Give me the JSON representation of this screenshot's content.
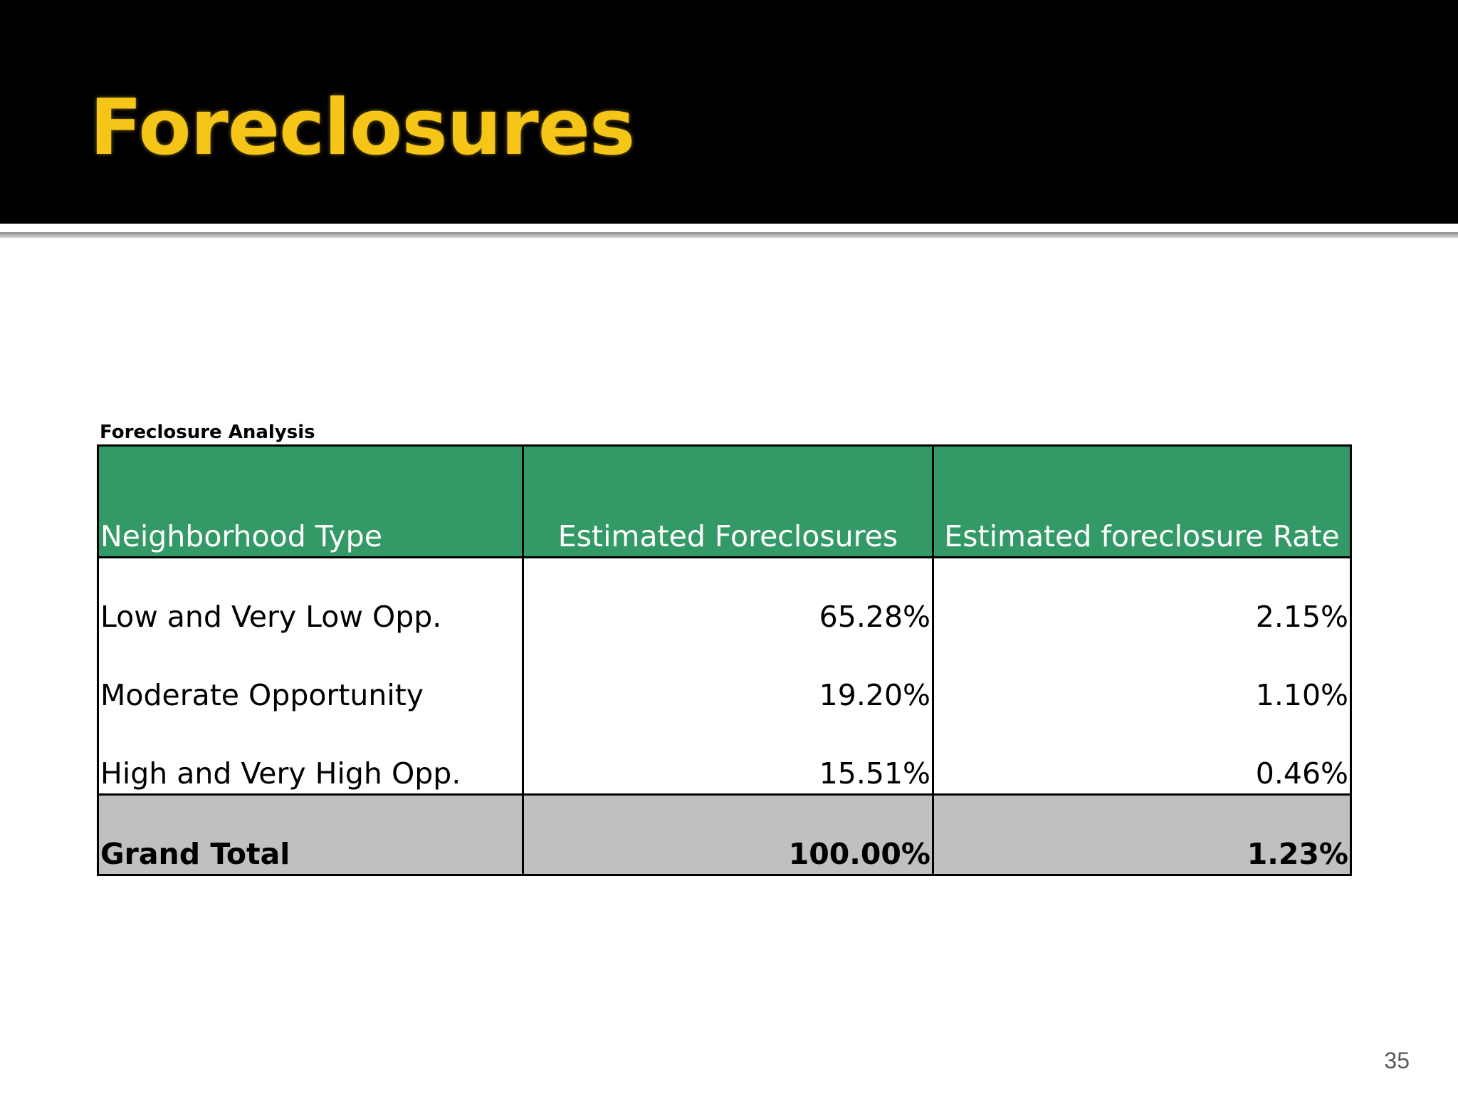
{
  "slide": {
    "title": "Foreclosures",
    "page_number": "35",
    "title_color": "#f5c518",
    "title_bar_color": "#000000"
  },
  "table": {
    "caption": "Foreclosure Analysis",
    "header_color": "#339966",
    "total_row_color": "#c0c0c0",
    "headers": [
      "Neighborhood Type",
      "Estimated Foreclosures",
      "Estimated foreclosure Rate"
    ],
    "rows": [
      {
        "type": "Low and Very Low Opp.",
        "foreclosures": "65.28%",
        "rate": "2.15%"
      },
      {
        "type": "Moderate Opportunity",
        "foreclosures": "19.20%",
        "rate": "1.10%"
      },
      {
        "type": "High and Very High Opp.",
        "foreclosures": "15.51%",
        "rate": "0.46%"
      }
    ],
    "total": {
      "label": "Grand Total",
      "foreclosures": "100.00%",
      "rate": "1.23%"
    }
  }
}
